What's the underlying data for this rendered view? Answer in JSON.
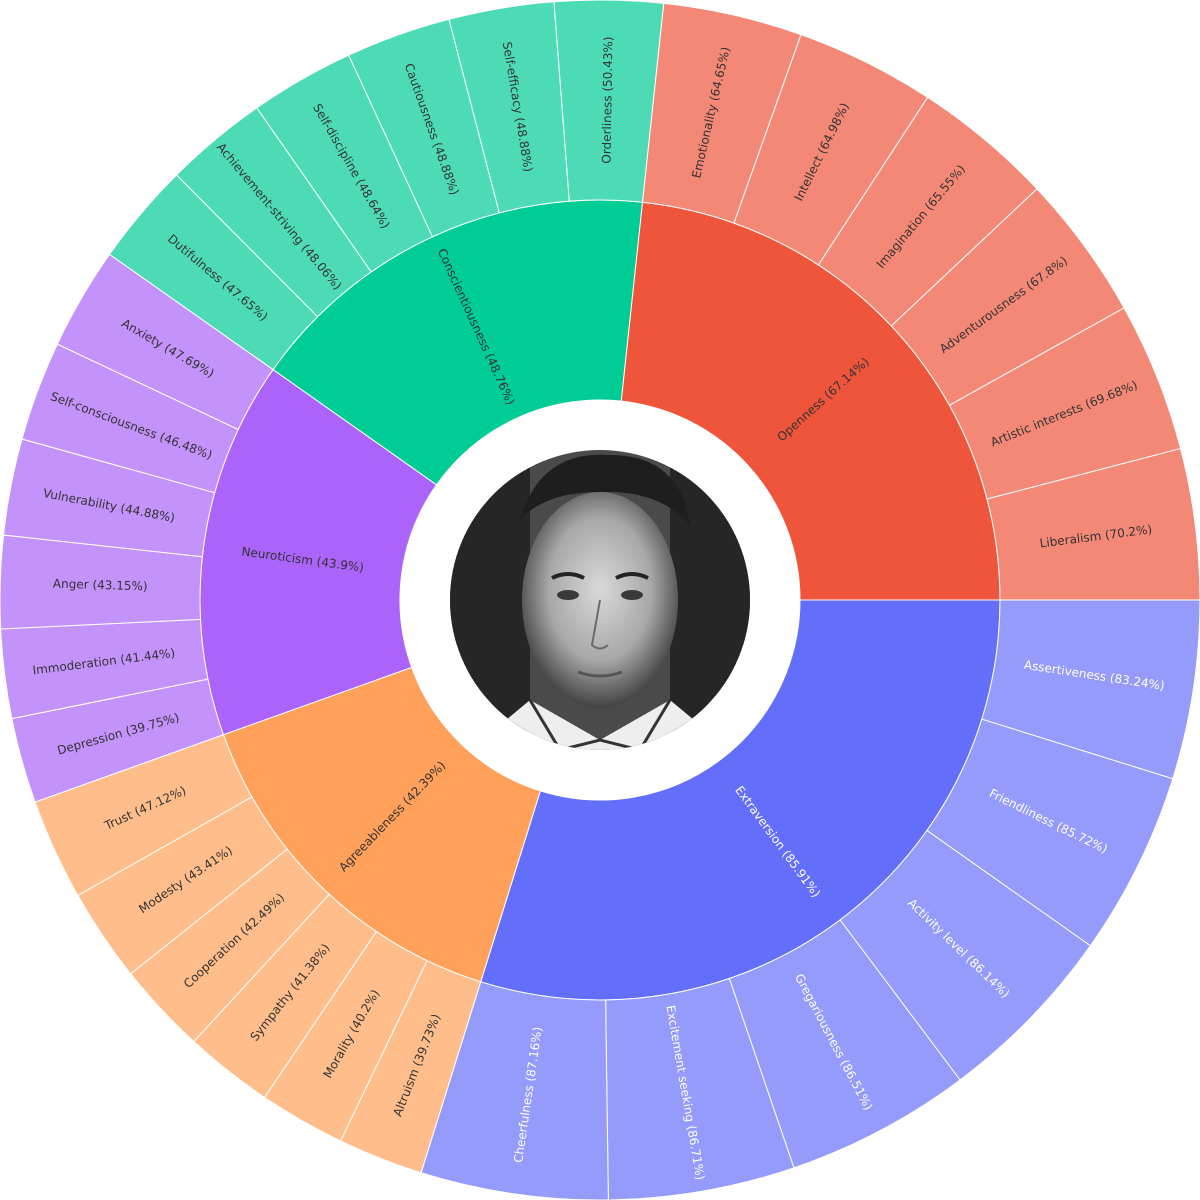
{
  "chart_data": {
    "type": "sunburst",
    "traits": [
      {
        "name": "Extraversion",
        "label": "Extraversion (85.91%)",
        "value": 85.91,
        "color": "#636efa",
        "facet_color": "#959bfb",
        "facets": [
          {
            "label": "Assertiveness (83.24%)",
            "value": 83.24
          },
          {
            "label": "Friendliness (85.72%)",
            "value": 85.72
          },
          {
            "label": "Activity level (86.14%)",
            "value": 86.14
          },
          {
            "label": "Gregariousness (86.51%)",
            "value": 86.51
          },
          {
            "label": "Excitement seeking (86.71%)",
            "value": 86.71
          },
          {
            "label": "Cheerfulness (87.16%)",
            "value": 87.16
          }
        ]
      },
      {
        "name": "Agreeableness",
        "label": "Agreeableness (42.39%)",
        "value": 42.39,
        "color": "#ffa15a",
        "facet_color": "#ffbd8b",
        "facets": [
          {
            "label": "Altruism (39.73%)",
            "value": 39.73
          },
          {
            "label": "Morality (40.2%)",
            "value": 40.2
          },
          {
            "label": "Sympathy (41.38%)",
            "value": 41.38
          },
          {
            "label": "Cooperation (42.49%)",
            "value": 42.49
          },
          {
            "label": "Modesty (43.41%)",
            "value": 43.41
          },
          {
            "label": "Trust (47.12%)",
            "value": 47.12
          }
        ]
      },
      {
        "name": "Neuroticism",
        "label": "Neuroticism (43.9%)",
        "value": 43.9,
        "color": "#ab63fa",
        "facet_color": "#c492fb",
        "facets": [
          {
            "label": "Depression (39.75%)",
            "value": 39.75
          },
          {
            "label": "Immoderation (41.44%)",
            "value": 41.44
          },
          {
            "label": "Anger (43.15%)",
            "value": 43.15
          },
          {
            "label": "Vulnerability (44.88%)",
            "value": 44.88
          },
          {
            "label": "Self-consciousness (46.48%)",
            "value": 46.48
          },
          {
            "label": "Anxiety (47.69%)",
            "value": 47.69
          }
        ]
      },
      {
        "name": "Conscientiousness",
        "label": "Conscientiousness (48.76%)",
        "value": 48.76,
        "color": "#00cc96",
        "facet_color": "#4ddbb6",
        "facets": [
          {
            "label": "Dutifulness (47.65%)",
            "value": 47.65
          },
          {
            "label": "Achievement-striving (48.06%)",
            "value": 48.06
          },
          {
            "label": "Self-discipline (48.64%)",
            "value": 48.64
          },
          {
            "label": "Cautiousness (48.88%)",
            "value": 48.88
          },
          {
            "label": "Self-efficacy (48.88%)",
            "value": 48.88
          },
          {
            "label": "Orderliness (50.43%)",
            "value": 50.43
          }
        ]
      },
      {
        "name": "Openness",
        "label": "Openness (67.14%)",
        "value": 67.14,
        "color": "#ef553b",
        "facet_color": "#f38876",
        "facets": [
          {
            "label": "Emotionality (64.65%)",
            "value": 64.65
          },
          {
            "label": "Intellect (64.98%)",
            "value": 64.98
          },
          {
            "label": "Imagination (65.55%)",
            "value": 65.55
          },
          {
            "label": "Adventurousness (67.8%)",
            "value": 67.8
          },
          {
            "label": "Artistic interests (69.68%)",
            "value": 69.68
          },
          {
            "label": "Liberalism (70.2%)",
            "value": 70.2
          }
        ]
      }
    ]
  }
}
